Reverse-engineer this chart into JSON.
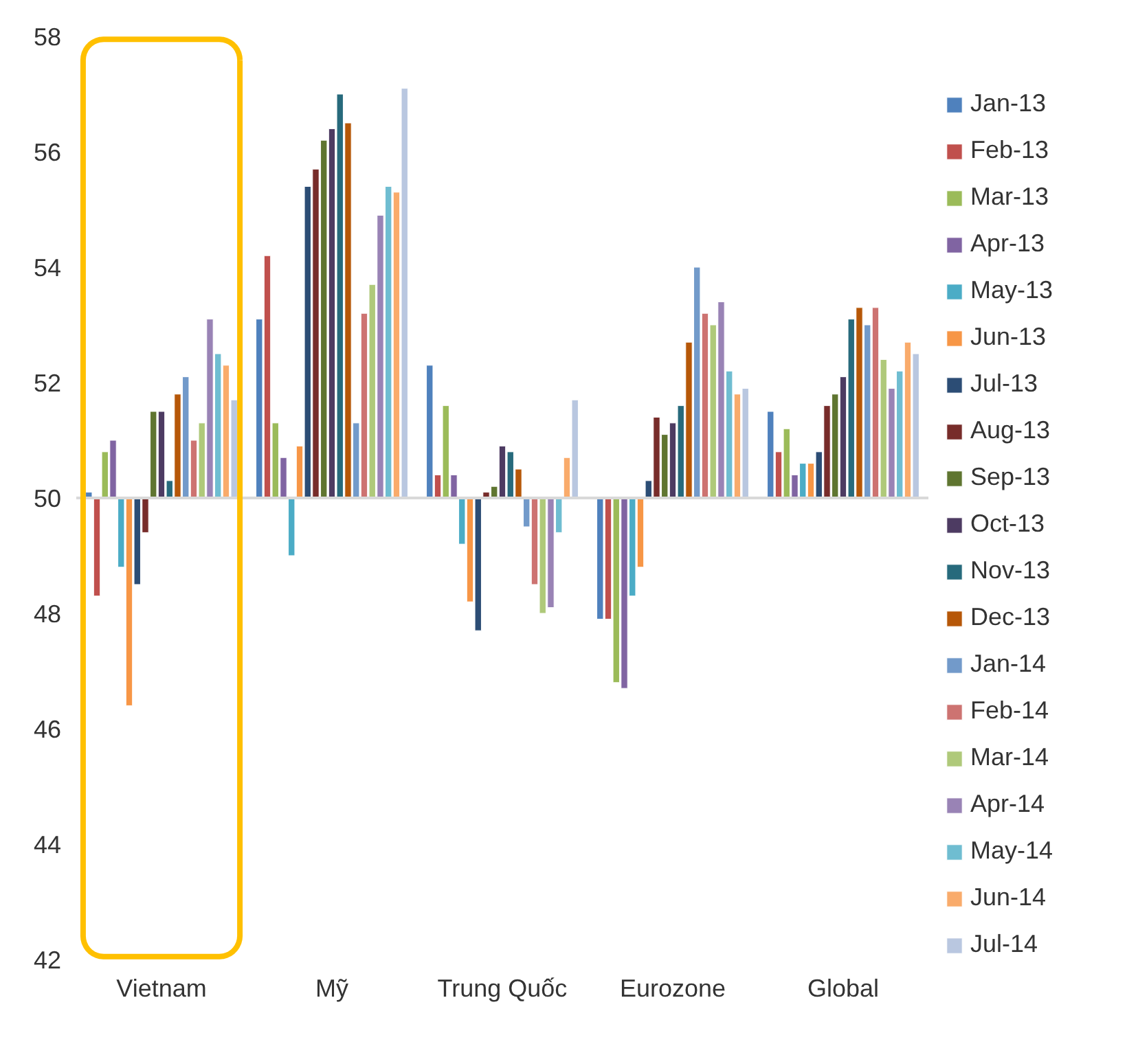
{
  "chart_data": {
    "type": "bar",
    "categories": [
      "Vietnam",
      "Mỹ",
      "Trung Quốc",
      "Eurozone",
      "Global"
    ],
    "ylim": [
      42,
      58
    ],
    "yticks": [
      42,
      44,
      46,
      48,
      50,
      52,
      54,
      56,
      58
    ],
    "grid": false,
    "legend": "right",
    "ref_lines": [
      {
        "axis": "y",
        "value": 50,
        "color": "#d9d9d9"
      }
    ],
    "series": [
      {
        "name": "Jan-13",
        "color": "#4f81bd",
        "base": [
          50,
          50,
          50,
          50,
          50
        ],
        "values": [
          0.1,
          3.1,
          2.3,
          -2.1,
          1.5
        ]
      },
      {
        "name": "Feb-13",
        "color": "#c0504d",
        "base": [
          50,
          50,
          50,
          50,
          50
        ],
        "values": [
          -1.7,
          4.2,
          0.4,
          -2.1,
          0.8
        ]
      },
      {
        "name": "Mar-13",
        "color": "#9bbb59",
        "base": [
          50,
          50,
          50,
          50,
          50
        ],
        "values": [
          0.8,
          1.3,
          1.6,
          -3.2,
          1.2
        ]
      },
      {
        "name": "Apr-13",
        "color": "#8064a2",
        "base": [
          50,
          50,
          50,
          50,
          50
        ],
        "values": [
          1.0,
          0.7,
          0.4,
          -3.3,
          0.4
        ]
      },
      {
        "name": "May-13",
        "color": "#4bacc6",
        "base": [
          50,
          50,
          50,
          50,
          50
        ],
        "values": [
          -1.2,
          -1.0,
          -0.8,
          -1.7,
          0.6
        ]
      },
      {
        "name": "Jun-13",
        "color": "#f79646",
        "base": [
          50,
          50,
          50,
          50,
          50
        ],
        "values": [
          -3.6,
          0.9,
          -1.8,
          -1.2,
          0.6
        ]
      },
      {
        "name": "Jul-13",
        "color": "#2c4d75",
        "base": [
          50,
          50,
          50,
          50,
          50
        ],
        "values": [
          -1.5,
          5.4,
          -2.3,
          0.3,
          0.8
        ]
      },
      {
        "name": "Aug-13",
        "color": "#772c2a",
        "base": [
          50,
          50,
          50,
          50,
          50
        ],
        "values": [
          -0.6,
          5.7,
          0.1,
          1.4,
          1.6
        ]
      },
      {
        "name": "Sep-13",
        "color": "#5f7530",
        "base": [
          50,
          50,
          50,
          50,
          50
        ],
        "values": [
          1.5,
          6.2,
          0.2,
          1.1,
          1.8
        ]
      },
      {
        "name": "Oct-13",
        "color": "#4d3b62",
        "base": [
          50,
          50,
          50,
          50,
          50
        ],
        "values": [
          1.5,
          6.4,
          0.9,
          1.3,
          2.1
        ]
      },
      {
        "name": "Nov-13",
        "color": "#276a7c",
        "base": [
          50,
          50,
          50,
          50,
          50
        ],
        "values": [
          0.3,
          7.0,
          0.8,
          1.6,
          3.1
        ]
      },
      {
        "name": "Dec-13",
        "color": "#b65708",
        "base": [
          50,
          50,
          50,
          50,
          50
        ],
        "values": [
          1.8,
          6.5,
          0.5,
          2.7,
          3.3
        ]
      },
      {
        "name": "Jan-14",
        "color": "#729aca",
        "base": [
          50,
          50,
          50,
          50,
          50
        ],
        "values": [
          2.1,
          1.3,
          -0.5,
          4.0,
          3.0
        ]
      },
      {
        "name": "Feb-14",
        "color": "#cd7371",
        "base": [
          50,
          50,
          50,
          50,
          50
        ],
        "values": [
          1.0,
          3.2,
          -1.5,
          3.2,
          3.3
        ]
      },
      {
        "name": "Mar-14",
        "color": "#afc97a",
        "base": [
          50,
          50,
          50,
          50,
          50
        ],
        "values": [
          1.3,
          3.7,
          -2.0,
          3.0,
          2.4
        ]
      },
      {
        "name": "Apr-14",
        "color": "#9983b5",
        "base": [
          50,
          50,
          50,
          50,
          50
        ],
        "values": [
          3.1,
          4.9,
          -1.9,
          3.4,
          1.9
        ]
      },
      {
        "name": "May-14",
        "color": "#6fbdd1",
        "base": [
          50,
          50,
          50,
          50,
          50
        ],
        "values": [
          2.5,
          5.4,
          -0.6,
          2.2,
          2.2
        ]
      },
      {
        "name": "Jun-14",
        "color": "#f9ab6b",
        "base": [
          50,
          50,
          50,
          50,
          50
        ],
        "values": [
          2.3,
          5.3,
          0.7,
          1.8,
          2.7
        ]
      },
      {
        "name": "Jul-14",
        "color": "#b9c7e0",
        "base": [
          50,
          50,
          50,
          50,
          50
        ],
        "values": [
          1.7,
          7.1,
          1.7,
          1.9,
          2.5
        ]
      }
    ]
  }
}
